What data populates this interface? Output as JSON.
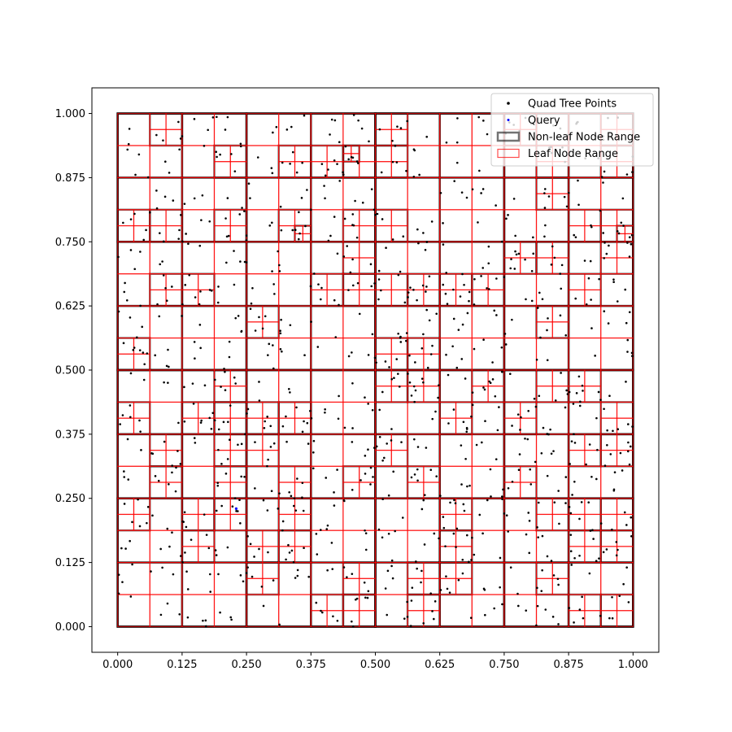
{
  "chart_data": {
    "type": "scatter",
    "title": "",
    "xlabel": "",
    "ylabel": "",
    "xlim": [
      -0.05,
      1.05
    ],
    "ylim": [
      -0.05,
      1.05
    ],
    "grid": false,
    "legend_position": "top-right",
    "x_ticks": [
      "0.000",
      "0.125",
      "0.250",
      "0.375",
      "0.500",
      "0.625",
      "0.750",
      "0.875",
      "1.000"
    ],
    "y_ticks": [
      "0.000",
      "0.125",
      "0.250",
      "0.375",
      "0.500",
      "0.625",
      "0.750",
      "0.875",
      "1.000"
    ],
    "root_range": [
      0,
      0,
      1,
      1
    ],
    "points_series": {
      "name": "Quad Tree Points",
      "approx_count": 1000,
      "color": "#000000",
      "distribution": "uniform on [0, 1] x [0, 1]"
    },
    "query": {
      "name": "Query",
      "x": 0.23,
      "y": 0.23,
      "color": "#0000ff"
    },
    "legend": [
      {
        "label": "Quad Tree Points",
        "kind": "point",
        "color": "#000000"
      },
      {
        "label": "Query",
        "kind": "point",
        "color": "#0000ff"
      },
      {
        "label": "Non-leaf Node Range",
        "kind": "box",
        "color": "#000000"
      },
      {
        "label": "Leaf Node Range",
        "kind": "box",
        "color": "#ff0000"
      }
    ],
    "series_styles": {
      "nonleaf": {
        "color": "#000000",
        "opacity": 0.55
      },
      "leaf": {
        "color": "#ff0000",
        "opacity": 0.7
      }
    }
  }
}
